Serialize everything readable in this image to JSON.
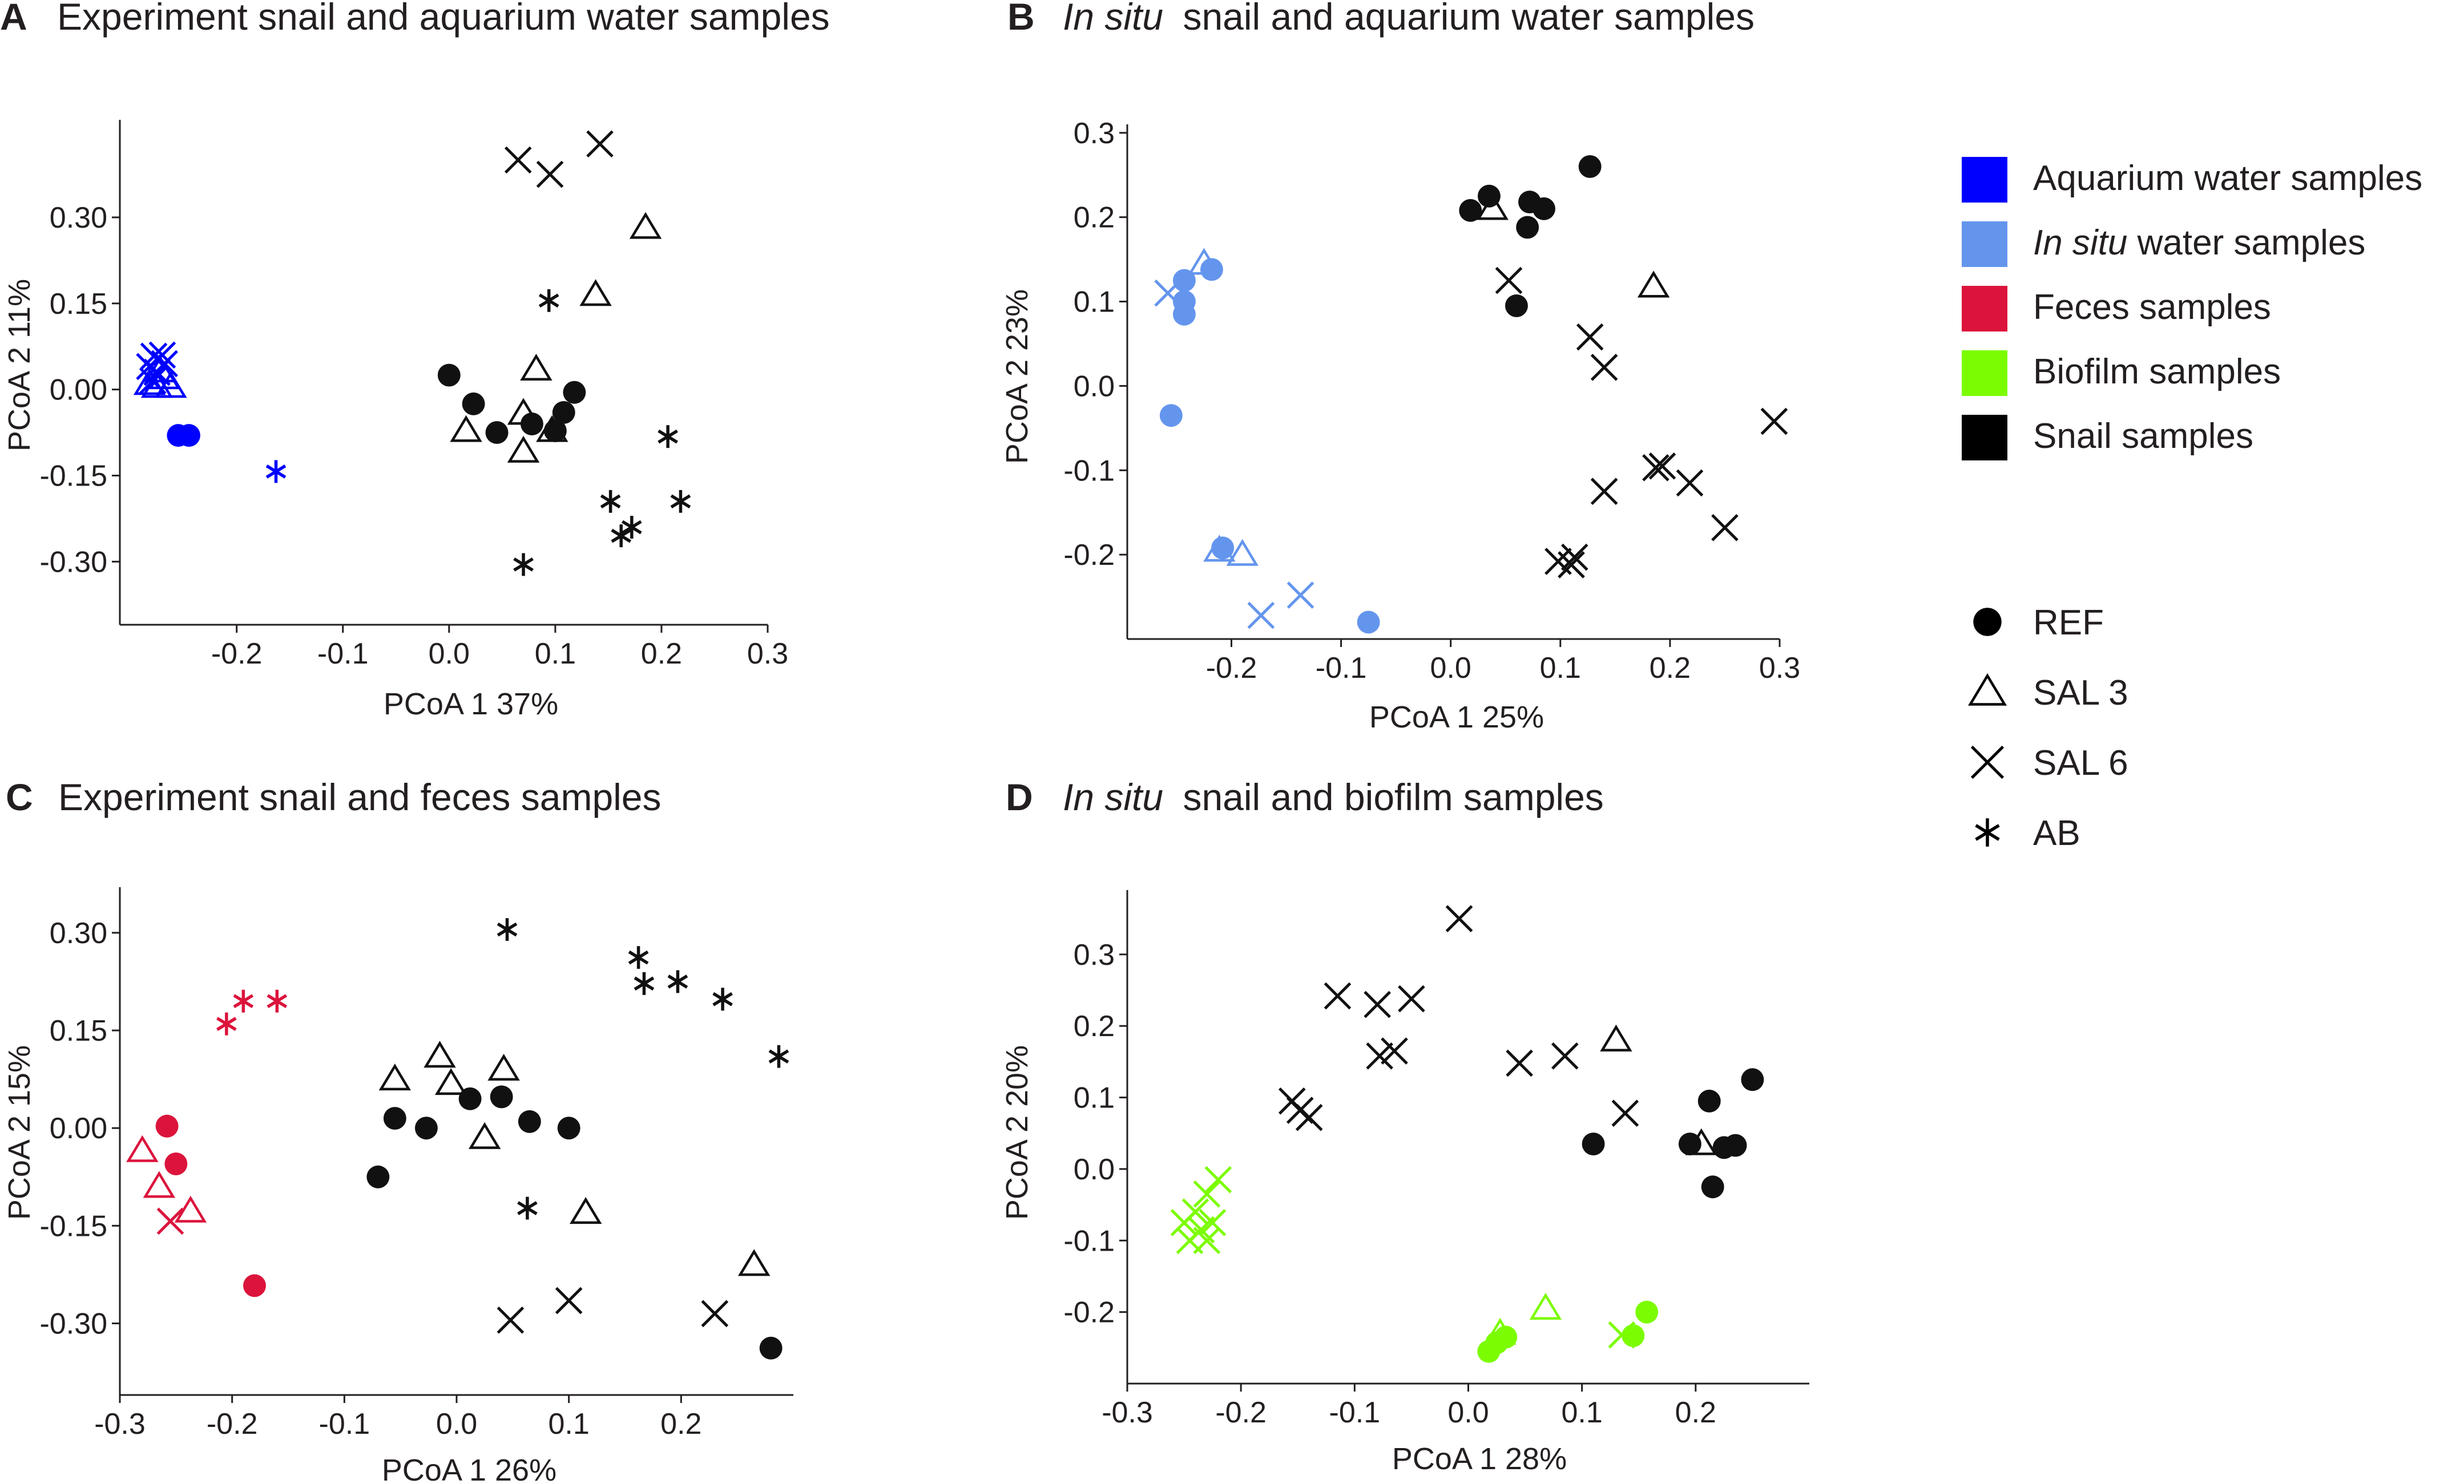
{
  "chart_data": [
    {
      "type": "scatter",
      "panel_letter": "A",
      "title": "Experiment snail and aquarium water samples",
      "title_italic_prefix": "",
      "xlabel": "PCoA 1 37%",
      "ylabel": "PCoA 2 11%",
      "xlim": [
        -0.31,
        0.3
      ],
      "ylim": [
        -0.41,
        0.47
      ],
      "xticks": [
        -0.2,
        -0.1,
        0.0,
        0.1,
        0.2,
        0.3
      ],
      "xtick_labels": [
        "-0.2",
        "-0.1",
        "0.0",
        "0.1",
        "0.2",
        "0.3"
      ],
      "yticks": [
        0.3,
        0.15,
        0.0,
        -0.15,
        -0.3
      ],
      "ytick_labels": [
        "0.30",
        "0.15",
        "0.00",
        "-0.15",
        "-0.30"
      ],
      "series": [
        {
          "name": "Aquarium water samples",
          "color": "#0000ff",
          "treatment": "SAL 6",
          "marker": "x",
          "points": [
            [
              -0.278,
              0.058
            ],
            [
              -0.27,
              0.06
            ],
            [
              -0.282,
              0.04
            ],
            [
              -0.275,
              0.03
            ],
            [
              -0.268,
              0.045
            ],
            [
              -0.279,
              0.015
            ]
          ]
        },
        {
          "name": "Aquarium water samples",
          "color": "#0000ff",
          "treatment": "SAL 3",
          "marker": "triangle",
          "points": [
            [
              -0.282,
              0.01
            ],
            [
              -0.275,
              0.005
            ],
            [
              -0.268,
              0.02
            ],
            [
              -0.262,
              0.005
            ],
            [
              -0.272,
              0.032
            ]
          ]
        },
        {
          "name": "Aquarium water samples",
          "color": "#0000ff",
          "treatment": "REF",
          "marker": "circle",
          "points": [
            [
              -0.255,
              -0.08
            ],
            [
              -0.245,
              -0.08
            ]
          ]
        },
        {
          "name": "Aquarium water samples",
          "color": "#0000ff",
          "treatment": "AB",
          "marker": "asterisk",
          "points": [
            [
              -0.163,
              -0.143
            ]
          ]
        },
        {
          "name": "Snail samples",
          "color": "#111111",
          "treatment": "SAL 6",
          "marker": "x",
          "points": [
            [
              0.065,
              0.4
            ],
            [
              0.095,
              0.375
            ],
            [
              0.142,
              0.428
            ]
          ]
        },
        {
          "name": "Snail samples",
          "color": "#111111",
          "treatment": "SAL 3",
          "marker": "triangle",
          "points": [
            [
              0.185,
              0.282
            ],
            [
              0.138,
              0.165
            ],
            [
              0.082,
              0.035
            ],
            [
              0.016,
              -0.072
            ],
            [
              0.07,
              -0.042
            ],
            [
              0.07,
              -0.108
            ],
            [
              0.097,
              -0.072
            ]
          ]
        },
        {
          "name": "Snail samples",
          "color": "#111111",
          "treatment": "REF",
          "marker": "circle",
          "points": [
            [
              0.0,
              0.025
            ],
            [
              0.023,
              -0.025
            ],
            [
              0.045,
              -0.075
            ],
            [
              0.078,
              -0.06
            ],
            [
              0.1,
              -0.072
            ],
            [
              0.108,
              -0.04
            ],
            [
              0.118,
              -0.005
            ]
          ]
        },
        {
          "name": "Snail samples",
          "color": "#111111",
          "treatment": "AB",
          "marker": "asterisk",
          "points": [
            [
              0.094,
              0.155
            ],
            [
              0.206,
              -0.082
            ],
            [
              0.152,
              -0.195
            ],
            [
              0.218,
              -0.195
            ],
            [
              0.172,
              -0.24
            ],
            [
              0.162,
              -0.255
            ],
            [
              0.07,
              -0.305
            ]
          ]
        }
      ]
    },
    {
      "type": "scatter",
      "panel_letter": "B",
      "title": "snail and aquarium water samples",
      "title_italic_prefix": "In situ",
      "xlabel": "PCoA 1 25%",
      "ylabel": "PCoA 2 23%",
      "xlim": [
        -0.295,
        0.3
      ],
      "ylim": [
        -0.3,
        0.31
      ],
      "xticks": [
        -0.2,
        -0.1,
        0.0,
        0.1,
        0.2,
        0.3
      ],
      "xtick_labels": [
        "-0.2",
        "-0.1",
        "0.0",
        "0.1",
        "0.2",
        "0.3"
      ],
      "yticks": [
        0.3,
        0.2,
        0.1,
        0.0,
        -0.1,
        -0.2
      ],
      "ytick_labels": [
        "0.3",
        "0.2",
        "0.1",
        "0.0",
        "-0.1",
        "-0.2"
      ],
      "series": [
        {
          "name": "In situ water samples",
          "color": "#6495ed",
          "treatment": "SAL 6",
          "marker": "x",
          "points": [
            [
              -0.258,
              0.11
            ],
            [
              -0.173,
              -0.272
            ],
            [
              -0.137,
              -0.248
            ]
          ]
        },
        {
          "name": "In situ water samples",
          "color": "#6495ed",
          "treatment": "SAL 3",
          "marker": "triangle",
          "points": [
            [
              -0.225,
              0.145
            ],
            [
              -0.211,
              -0.195
            ],
            [
              -0.19,
              -0.2
            ]
          ]
        },
        {
          "name": "In situ water samples",
          "color": "#6495ed",
          "treatment": "REF",
          "marker": "circle",
          "points": [
            [
              -0.243,
              0.125
            ],
            [
              -0.243,
              0.1
            ],
            [
              -0.243,
              0.085
            ],
            [
              -0.218,
              0.138
            ],
            [
              -0.255,
              -0.035
            ],
            [
              -0.208,
              -0.192
            ],
            [
              -0.075,
              -0.28
            ]
          ]
        },
        {
          "name": "Snail samples",
          "color": "#111111",
          "treatment": "SAL 6",
          "marker": "x",
          "points": [
            [
              0.053,
              0.125
            ],
            [
              0.127,
              0.058
            ],
            [
              0.14,
              0.022
            ],
            [
              0.295,
              -0.042
            ],
            [
              0.187,
              -0.097
            ],
            [
              0.193,
              -0.095
            ],
            [
              0.218,
              -0.115
            ],
            [
              0.14,
              -0.125
            ],
            [
              0.25,
              -0.168
            ],
            [
              0.098,
              -0.208
            ],
            [
              0.11,
              -0.212
            ],
            [
              0.113,
              -0.203
            ]
          ]
        },
        {
          "name": "Snail samples",
          "color": "#111111",
          "treatment": "SAL 3",
          "marker": "triangle",
          "points": [
            [
              0.038,
              0.21
            ],
            [
              0.185,
              0.118
            ]
          ]
        },
        {
          "name": "Snail samples",
          "color": "#111111",
          "treatment": "REF",
          "marker": "circle",
          "points": [
            [
              0.018,
              0.208
            ],
            [
              0.035,
              0.225
            ],
            [
              0.072,
              0.218
            ],
            [
              0.085,
              0.21
            ],
            [
              0.07,
              0.188
            ],
            [
              0.06,
              0.095
            ],
            [
              0.127,
              0.26
            ]
          ]
        }
      ]
    },
    {
      "type": "scatter",
      "panel_letter": "C",
      "title": "Experiment snail and feces samples",
      "title_italic_prefix": "",
      "xlabel": "PCoA 1 26%",
      "ylabel": "PCoA 2 15%",
      "xlim": [
        -0.3,
        0.3
      ],
      "ylim": [
        -0.41,
        0.37
      ],
      "xticks": [
        -0.3,
        -0.2,
        -0.1,
        0.0,
        0.1,
        0.2
      ],
      "xtick_labels": [
        "-0.3",
        "-0.2",
        "-0.1",
        "0.0",
        "0.1",
        "0.2"
      ],
      "yticks": [
        0.3,
        0.15,
        0.0,
        -0.15,
        -0.3
      ],
      "ytick_labels": [
        "0.30",
        "0.15",
        "0.00",
        "-0.15",
        "-0.30"
      ],
      "series": [
        {
          "name": "Feces samples",
          "color": "#dc143c",
          "treatment": "AB",
          "marker": "asterisk",
          "points": [
            [
              -0.205,
              0.16
            ],
            [
              -0.19,
              0.195
            ],
            [
              -0.16,
              0.195
            ]
          ]
        },
        {
          "name": "Feces samples",
          "color": "#dc143c",
          "treatment": "REF",
          "marker": "circle",
          "points": [
            [
              -0.258,
              0.003
            ],
            [
              -0.25,
              -0.055
            ],
            [
              -0.18,
              -0.242
            ]
          ]
        },
        {
          "name": "Feces samples",
          "color": "#dc143c",
          "treatment": "SAL 3",
          "marker": "triangle",
          "points": [
            [
              -0.28,
              -0.035
            ],
            [
              -0.265,
              -0.09
            ],
            [
              -0.237,
              -0.128
            ]
          ]
        },
        {
          "name": "Feces samples",
          "color": "#dc143c",
          "treatment": "SAL 6",
          "marker": "x",
          "points": [
            [
              -0.255,
              -0.143
            ]
          ]
        },
        {
          "name": "Snail samples",
          "color": "#111111",
          "treatment": "AB",
          "marker": "asterisk",
          "points": [
            [
              0.045,
              0.305
            ],
            [
              0.162,
              0.262
            ],
            [
              0.167,
              0.222
            ],
            [
              0.197,
              0.225
            ],
            [
              0.237,
              0.198
            ],
            [
              0.287,
              0.11
            ],
            [
              0.063,
              -0.123
            ]
          ]
        },
        {
          "name": "Snail samples",
          "color": "#111111",
          "treatment": "SAL 3",
          "marker": "triangle",
          "points": [
            [
              -0.055,
              0.075
            ],
            [
              -0.015,
              0.11
            ],
            [
              -0.005,
              0.068
            ],
            [
              0.042,
              0.09
            ],
            [
              0.025,
              -0.015
            ],
            [
              0.115,
              -0.13
            ],
            [
              0.265,
              -0.21
            ]
          ]
        },
        {
          "name": "Snail samples",
          "color": "#111111",
          "treatment": "REF",
          "marker": "circle",
          "points": [
            [
              -0.07,
              -0.075
            ],
            [
              -0.055,
              0.015
            ],
            [
              -0.027,
              0.0
            ],
            [
              0.012,
              0.045
            ],
            [
              0.04,
              0.048
            ],
            [
              0.065,
              0.01
            ],
            [
              0.1,
              0.0
            ],
            [
              0.28,
              -0.338
            ]
          ]
        },
        {
          "name": "Snail samples",
          "color": "#111111",
          "treatment": "SAL 6",
          "marker": "x",
          "points": [
            [
              0.048,
              -0.295
            ],
            [
              0.1,
              -0.265
            ],
            [
              0.23,
              -0.285
            ]
          ]
        }
      ]
    },
    {
      "type": "scatter",
      "panel_letter": "D",
      "title": "snail and biofilm samples",
      "title_italic_prefix": "In situ",
      "xlabel": "PCoA 1 28%",
      "ylabel": "PCoA 2 20%",
      "xlim": [
        -0.3,
        0.3
      ],
      "ylim": [
        -0.3,
        0.39
      ],
      "xticks": [
        -0.3,
        -0.2,
        -0.1,
        0.0,
        0.1,
        0.2
      ],
      "xtick_labels": [
        "-0.3",
        "-0.2",
        "-0.1",
        "0.0",
        "0.1",
        "0.2"
      ],
      "yticks": [
        0.3,
        0.2,
        0.1,
        0.0,
        -0.1,
        -0.2
      ],
      "ytick_labels": [
        "0.3",
        "0.2",
        "0.1",
        "0.0",
        "-0.1",
        "-0.2"
      ],
      "series": [
        {
          "name": "Biofilm samples",
          "color": "#7cfc00",
          "treatment": "SAL 6",
          "marker": "x",
          "points": [
            [
              -0.22,
              -0.015
            ],
            [
              -0.23,
              -0.035
            ],
            [
              -0.24,
              -0.06
            ],
            [
              -0.25,
              -0.075
            ],
            [
              -0.225,
              -0.075
            ],
            [
              -0.235,
              -0.085
            ],
            [
              -0.245,
              -0.1
            ],
            [
              -0.23,
              -0.1
            ],
            [
              0.135,
              -0.232
            ]
          ]
        },
        {
          "name": "Biofilm samples",
          "color": "#7cfc00",
          "treatment": "SAL 3",
          "marker": "triangle",
          "points": [
            [
              0.068,
              -0.195
            ],
            [
              0.028,
              -0.23
            ]
          ]
        },
        {
          "name": "Biofilm samples",
          "color": "#7cfc00",
          "treatment": "REF",
          "marker": "circle",
          "points": [
            [
              0.018,
              -0.255
            ],
            [
              0.025,
              -0.243
            ],
            [
              0.033,
              -0.235
            ],
            [
              0.145,
              -0.233
            ],
            [
              0.157,
              -0.2
            ]
          ]
        },
        {
          "name": "Snail samples",
          "color": "#111111",
          "treatment": "SAL 6",
          "marker": "x",
          "points": [
            [
              -0.008,
              0.35
            ],
            [
              -0.115,
              0.242
            ],
            [
              -0.08,
              0.23
            ],
            [
              -0.05,
              0.238
            ],
            [
              -0.078,
              0.158
            ],
            [
              -0.065,
              0.165
            ],
            [
              0.045,
              0.148
            ],
            [
              0.085,
              0.158
            ],
            [
              -0.155,
              0.095
            ],
            [
              -0.148,
              0.082
            ],
            [
              -0.14,
              0.072
            ],
            [
              0.138,
              0.078
            ]
          ]
        },
        {
          "name": "Snail samples",
          "color": "#111111",
          "treatment": "SAL 3",
          "marker": "triangle",
          "points": [
            [
              0.13,
              0.18
            ],
            [
              0.205,
              0.035
            ]
          ]
        },
        {
          "name": "Snail samples",
          "color": "#111111",
          "treatment": "REF",
          "marker": "circle",
          "points": [
            [
              0.11,
              0.035
            ],
            [
              0.195,
              0.035
            ],
            [
              0.212,
              0.095
            ],
            [
              0.25,
              0.125
            ],
            [
              0.225,
              0.03
            ],
            [
              0.235,
              0.033
            ],
            [
              0.215,
              -0.025
            ]
          ]
        }
      ]
    }
  ],
  "legend": {
    "color_entries": [
      {
        "label": "Aquarium water samples",
        "italic_prefix": "",
        "color": "#0000ff"
      },
      {
        "label": " water samples",
        "italic_prefix": "In situ",
        "color": "#6495ed"
      },
      {
        "label": "Feces samples",
        "italic_prefix": "",
        "color": "#dc143c"
      },
      {
        "label": "Biofilm samples",
        "italic_prefix": "",
        "color": "#7cfc00"
      },
      {
        "label": "Snail samples",
        "italic_prefix": "",
        "color": "#000000"
      }
    ],
    "shape_entries": [
      {
        "label": "REF",
        "marker": "circle"
      },
      {
        "label": "SAL 3",
        "marker": "triangle"
      },
      {
        "label": "SAL 6",
        "marker": "x"
      },
      {
        "label": "AB",
        "marker": "asterisk"
      }
    ]
  }
}
